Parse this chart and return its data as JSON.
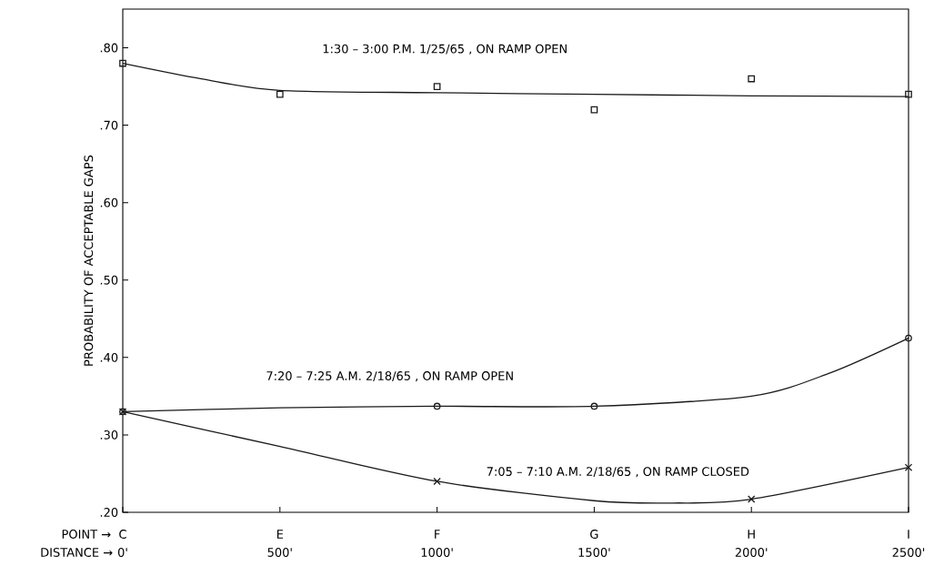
{
  "chart_data": {
    "type": "line",
    "ylabel": "PROBABILITY OF ACCEPTABLE GAPS",
    "xlabel": "DISTANCE →",
    "xlim": [
      0,
      2500
    ],
    "ylim": [
      0.2,
      0.85
    ],
    "xticks": [
      {
        "value": 0,
        "label": "0'"
      },
      {
        "value": 500,
        "label": "500'"
      },
      {
        "value": 1000,
        "label": "1000'"
      },
      {
        "value": 1500,
        "label": "1500'"
      },
      {
        "value": 2000,
        "label": "2000'"
      },
      {
        "value": 2500,
        "label": "2500'"
      }
    ],
    "yticks": [
      {
        "value": 0.2,
        "label": ".20"
      },
      {
        "value": 0.3,
        "label": ".30"
      },
      {
        "value": 0.4,
        "label": ".40"
      },
      {
        "value": 0.5,
        "label": ".50"
      },
      {
        "value": 0.6,
        "label": ".60"
      },
      {
        "value": 0.7,
        "label": ".70"
      },
      {
        "value": 0.8,
        "label": ".80"
      }
    ],
    "grid": false,
    "series": [
      {
        "type": "scatter",
        "marker": "square",
        "color": "#1a1a1a",
        "x": [
          0,
          500,
          1000,
          1500,
          2000,
          2500
        ],
        "values": [
          0.78,
          0.74,
          0.75,
          0.72,
          0.76,
          0.74
        ]
      },
      {
        "marker": "none",
        "color": "#1a1a1a",
        "x": [
          0,
          250,
          500,
          1000,
          1500,
          2000,
          2500
        ],
        "values": [
          0.78,
          0.76,
          0.745,
          0.742,
          0.74,
          0.738,
          0.737
        ]
      },
      {
        "type": "scatter",
        "marker": "circle",
        "color": "#1a1a1a",
        "x": [
          0,
          1000,
          1500,
          2500
        ],
        "values": [
          0.33,
          0.337,
          0.337,
          0.425
        ]
      },
      {
        "marker": "none",
        "color": "#1a1a1a",
        "x": [
          0,
          500,
          1000,
          1500,
          2000,
          2250,
          2500
        ],
        "values": [
          0.33,
          0.335,
          0.337,
          0.337,
          0.35,
          0.38,
          0.425
        ]
      },
      {
        "type": "scatter",
        "marker": "cross",
        "color": "#1a1a1a",
        "x": [
          0,
          1000,
          2000,
          2500
        ],
        "values": [
          0.33,
          0.24,
          0.217,
          0.258
        ]
      },
      {
        "marker": "none",
        "color": "#1a1a1a",
        "x": [
          0,
          500,
          1000,
          1500,
          1750,
          2000,
          2500
        ],
        "values": [
          0.33,
          0.285,
          0.24,
          0.215,
          0.212,
          0.217,
          0.258
        ]
      }
    ],
    "annotations": [
      "1:30 – 3:00 P.M.  1/25/65 , ON RAMP OPEN",
      "7:20 – 7:25 A.M.  2/18/65 , ON RAMP OPEN",
      "7:05 – 7:10 A.M.  2/18/65 , ON RAMP CLOSED",
      "POINT →",
      "C",
      "E",
      "F",
      "G",
      "H",
      "I"
    ]
  }
}
